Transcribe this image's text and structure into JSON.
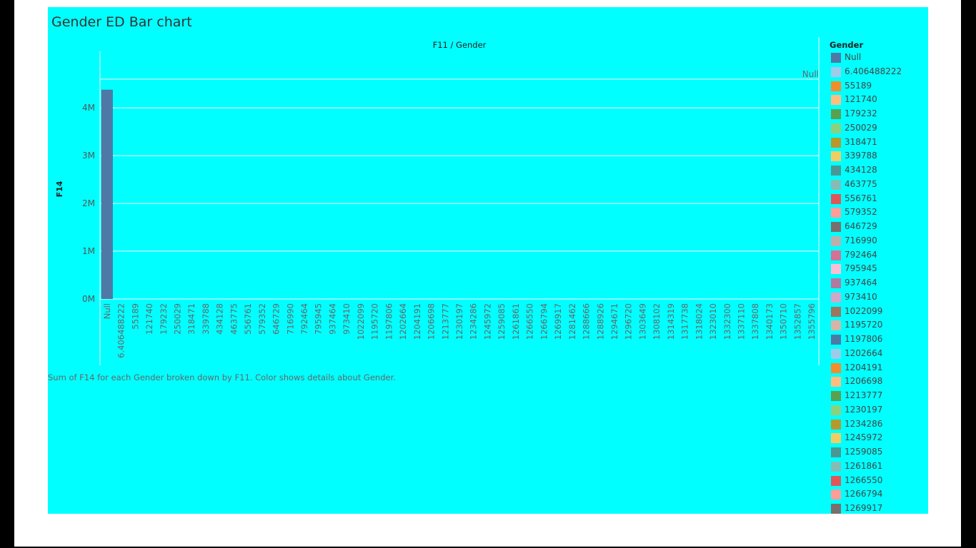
{
  "dashboard": {
    "title": "Gender ED Bar chart",
    "caption": "Sum of F14 for each Gender broken down by F11.  Color shows details about Gender.",
    "background": "#00ffff",
    "frame_color": "#ffffff",
    "outer_color": "#000000"
  },
  "legend": {
    "title": "Gender",
    "items": [
      {
        "label": "Null",
        "color": "#4e79a7"
      },
      {
        "label": "6.406488222",
        "color": "#a0cbe8"
      },
      {
        "label": "55189",
        "color": "#f28e2b"
      },
      {
        "label": "121740",
        "color": "#ffbe7d"
      },
      {
        "label": "179232",
        "color": "#59a14f"
      },
      {
        "label": "250029",
        "color": "#8cd17d"
      },
      {
        "label": "318471",
        "color": "#b6992d"
      },
      {
        "label": "339788",
        "color": "#f1ce63"
      },
      {
        "label": "434128",
        "color": "#499894"
      },
      {
        "label": "463775",
        "color": "#86bcb6"
      },
      {
        "label": "556761",
        "color": "#e15759"
      },
      {
        "label": "579352",
        "color": "#ff9d9a"
      },
      {
        "label": "646729",
        "color": "#79706e"
      },
      {
        "label": "716990",
        "color": "#bab0ac"
      },
      {
        "label": "792464",
        "color": "#d37295"
      },
      {
        "label": "795945",
        "color": "#fabfd2"
      },
      {
        "label": "937464",
        "color": "#b07aa1"
      },
      {
        "label": "973410",
        "color": "#d4a6c8"
      },
      {
        "label": "1022099",
        "color": "#9d7660"
      },
      {
        "label": "1195720",
        "color": "#d7b5a6"
      },
      {
        "label": "1197806",
        "color": "#4e79a7"
      },
      {
        "label": "1202664",
        "color": "#a0cbe8"
      },
      {
        "label": "1204191",
        "color": "#f28e2b"
      },
      {
        "label": "1206698",
        "color": "#ffbe7d"
      },
      {
        "label": "1213777",
        "color": "#59a14f"
      },
      {
        "label": "1230197",
        "color": "#8cd17d"
      },
      {
        "label": "1234286",
        "color": "#b6992d"
      },
      {
        "label": "1245972",
        "color": "#f1ce63"
      },
      {
        "label": "1259085",
        "color": "#499894"
      },
      {
        "label": "1261861",
        "color": "#86bcb6"
      },
      {
        "label": "1266550",
        "color": "#e15759"
      },
      {
        "label": "1266794",
        "color": "#ff9d9a"
      },
      {
        "label": "1269917",
        "color": "#79706e"
      }
    ]
  },
  "chart_data": {
    "type": "bar",
    "title": "",
    "column_header": "F11 / Gender",
    "row_header": "Null",
    "xlabel": "",
    "ylabel": "F14",
    "ylim": [
      0,
      4600000
    ],
    "yticks": [
      0,
      1000000,
      2000000,
      3000000,
      4000000
    ],
    "ytick_labels": [
      "0M",
      "1M",
      "2M",
      "3M",
      "4M"
    ],
    "grid": true,
    "legend": "right",
    "categories": [
      "Null",
      "6.406488222",
      "55189",
      "121740",
      "179232",
      "250029",
      "318471",
      "339788",
      "434128",
      "463775",
      "556761",
      "579352",
      "646729",
      "716990",
      "792464",
      "795945",
      "937464",
      "973410",
      "1022099",
      "1195720",
      "1197806",
      "1202664",
      "1204191",
      "1206698",
      "1213777",
      "1230197",
      "1234286",
      "1245972",
      "1259085",
      "1261861",
      "1266550",
      "1266794",
      "1269917",
      "1281462",
      "1288666",
      "1288926",
      "1294671",
      "1296720",
      "1303649",
      "1308102",
      "1314319",
      "1317738",
      "1318024",
      "1323010",
      "1332300",
      "1337110",
      "1337808",
      "1340173",
      "1350710",
      "1352857",
      "1355796"
    ],
    "series": [
      {
        "values": [
          4380000,
          0,
          0,
          0,
          0,
          0,
          0,
          0,
          0,
          0,
          0,
          0,
          0,
          0,
          0,
          0,
          0,
          0,
          0,
          0,
          0,
          0,
          0,
          0,
          0,
          0,
          0,
          0,
          0,
          0,
          0,
          0,
          0,
          0,
          0,
          0,
          0,
          0,
          0,
          0,
          0,
          0,
          0,
          0,
          0,
          0,
          0,
          0,
          0,
          0,
          0
        ],
        "color": "#4e79a7"
      }
    ]
  }
}
